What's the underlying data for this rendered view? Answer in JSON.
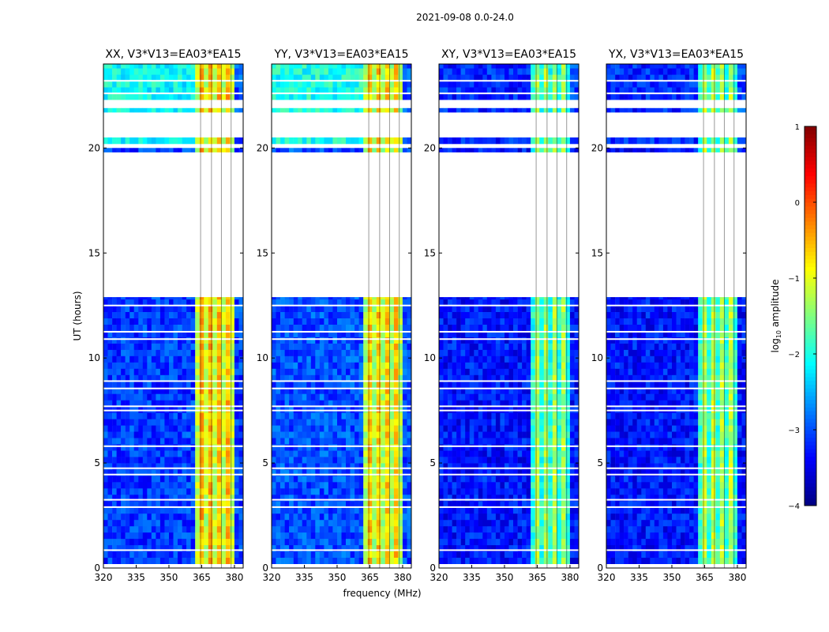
{
  "chart_data": {
    "type": "heatmap",
    "title": "2021-09-08 0.0-24.0",
    "xlabel": "frequency (MHz)",
    "ylabel": "UT (hours)",
    "xlim": [
      320,
      384
    ],
    "ylim": [
      0,
      24
    ],
    "xticks": [
      320,
      335,
      350,
      365,
      380
    ],
    "yticks": [
      0,
      5,
      10,
      15,
      20
    ],
    "panels": [
      {
        "title": "XX, V3*V13=EA03*EA15",
        "band_level": -0.4,
        "background_level": -3.1,
        "late_background_level": -2.1
      },
      {
        "title": "YY, V3*V13=EA03*EA15",
        "band_level": -0.5,
        "background_level": -3.0,
        "late_background_level": -2.0
      },
      {
        "title": "XY, V3*V13=EA03*EA15",
        "band_level": -1.2,
        "background_level": -3.3,
        "late_background_level": -3.2
      },
      {
        "title": "YX, V3*V13=EA03*EA15",
        "band_level": -1.1,
        "background_level": -3.3,
        "late_background_level": -3.2
      }
    ],
    "rfi_band_mhz": [
      361,
      380
    ],
    "data_segments_hours": [
      [
        0.2,
        12.9
      ],
      [
        19.8,
        20.0
      ],
      [
        20.2,
        20.5
      ],
      [
        21.7,
        21.9
      ],
      [
        22.3,
        24.0
      ]
    ],
    "flagged_hours": [
      0.85,
      2.9,
      3.25,
      4.45,
      4.75,
      5.8,
      7.5,
      7.7,
      8.55,
      8.9,
      10.9,
      11.25,
      12.5,
      22.6,
      23.2
    ],
    "colorbar": {
      "label": "log10 amplitude",
      "label_base": "log",
      "label_sub": "10",
      "label_rest": " amplitude",
      "range": [
        -4,
        1
      ],
      "ticks": [
        1,
        0,
        -1,
        -2,
        -3,
        -4
      ],
      "colormap": "jet"
    }
  }
}
